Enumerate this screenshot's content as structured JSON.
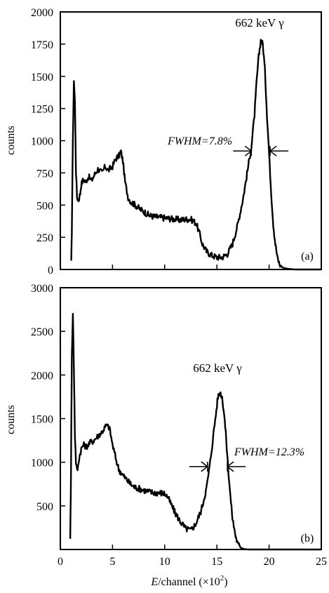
{
  "chart_data": [
    {
      "type": "line",
      "panel_label": "(a)",
      "ylabel": "counts",
      "xlim": [
        0,
        25
      ],
      "ylim": [
        0,
        2000
      ],
      "yticks": [
        0,
        250,
        500,
        750,
        1000,
        1250,
        1500,
        1750,
        2000
      ],
      "ytick_labels": [
        "0",
        "250",
        "500",
        "750",
        "1000",
        "1250",
        "1500",
        "1750",
        "2000"
      ],
      "peak_label": "662 keV γ",
      "fwhm_label": "FWHM=7.8%",
      "fwhm_range": [
        18.3,
        20.1
      ],
      "fwhm_y": 920,
      "series": [
        {
          "x": [
            1.05,
            1.1,
            1.2,
            1.3,
            1.4,
            1.5,
            1.6,
            1.75,
            1.9,
            2.0,
            2.2,
            2.4,
            2.7,
            3.0,
            3.3,
            3.6,
            4.0,
            4.3,
            4.6,
            5.0,
            5.3,
            5.6,
            5.8,
            6.0,
            6.2,
            6.5,
            6.8,
            7.2,
            7.6,
            8.0,
            8.5,
            9.0,
            9.5,
            10.0,
            10.5,
            11.0,
            11.5,
            12.0,
            12.5,
            13.0,
            13.3,
            13.6,
            14.0,
            14.5,
            15.0,
            15.5,
            16.0,
            16.5,
            17.0,
            17.5,
            18.0,
            18.3,
            18.6,
            18.8,
            19.0,
            19.2,
            19.4,
            19.6,
            19.8,
            20.0,
            20.2,
            20.4,
            20.6,
            20.8,
            21.0,
            21.3,
            21.8,
            22.5,
            23.5,
            25.0
          ],
          "y": [
            50,
            300,
            1000,
            1470,
            1300,
            760,
            560,
            540,
            590,
            660,
            700,
            680,
            720,
            690,
            740,
            780,
            750,
            800,
            770,
            800,
            860,
            880,
            920,
            840,
            680,
            560,
            520,
            500,
            470,
            450,
            420,
            410,
            405,
            400,
            395,
            390,
            385,
            390,
            390,
            360,
            290,
            200,
            140,
            110,
            95,
            95,
            120,
            200,
            350,
            550,
            800,
            950,
            1200,
            1450,
            1650,
            1780,
            1750,
            1550,
            1200,
            900,
            600,
            350,
            200,
            90,
            40,
            15,
            5,
            0,
            0,
            0
          ]
        }
      ]
    },
    {
      "type": "line",
      "panel_label": "(b)",
      "ylabel": "counts",
      "xlabel": "E/channel (×10²)",
      "xlabel_italic": "E",
      "xlabel_rest": "/channel  (×10",
      "xlabel_sup": "2",
      "xlabel_close": ")",
      "xlim": [
        0,
        25
      ],
      "ylim": [
        0,
        3000
      ],
      "xticks": [
        0,
        5,
        10,
        15,
        20,
        25
      ],
      "xtick_labels": [
        "0",
        "5",
        "10",
        "15",
        "20",
        "25"
      ],
      "yticks": [
        500,
        1000,
        1500,
        2000,
        2500,
        3000
      ],
      "ytick_labels": [
        "500",
        "1000",
        "1500",
        "2000",
        "2500",
        "3000"
      ],
      "peak_label": "662 keV γ",
      "fwhm_label": "FWHM=12.3%",
      "fwhm_range": [
        14.1,
        16.0
      ],
      "fwhm_y": 950,
      "series": [
        {
          "x": [
            0.95,
            1.0,
            1.05,
            1.1,
            1.2,
            1.3,
            1.4,
            1.5,
            1.6,
            1.7,
            1.8,
            2.0,
            2.2,
            2.5,
            2.8,
            3.2,
            3.6,
            4.0,
            4.4,
            4.7,
            5.0,
            5.3,
            5.6,
            6.0,
            6.5,
            7.0,
            7.5,
            8.0,
            8.5,
            9.0,
            9.5,
            10.0,
            10.3,
            10.6,
            11.0,
            11.5,
            12.0,
            12.5,
            13.0,
            13.5,
            14.0,
            14.3,
            14.6,
            14.9,
            15.1,
            15.3,
            15.5,
            15.7,
            15.9,
            16.1,
            16.3,
            16.5,
            16.8,
            17.0,
            17.3,
            17.6,
            18.0,
            18.5,
            19.5,
            25.0
          ],
          "y": [
            150,
            600,
            1400,
            2200,
            2700,
            2100,
            1300,
            1000,
            900,
            950,
            1050,
            1150,
            1200,
            1180,
            1220,
            1250,
            1300,
            1350,
            1420,
            1400,
            1200,
            1050,
            920,
            850,
            780,
            720,
            700,
            680,
            660,
            650,
            650,
            640,
            600,
            520,
            420,
            320,
            240,
            220,
            300,
            450,
            700,
            950,
            1250,
            1550,
            1750,
            1800,
            1750,
            1550,
            1250,
            900,
            600,
            350,
            150,
            60,
            20,
            5,
            0,
            0,
            0,
            0
          ]
        }
      ]
    }
  ]
}
